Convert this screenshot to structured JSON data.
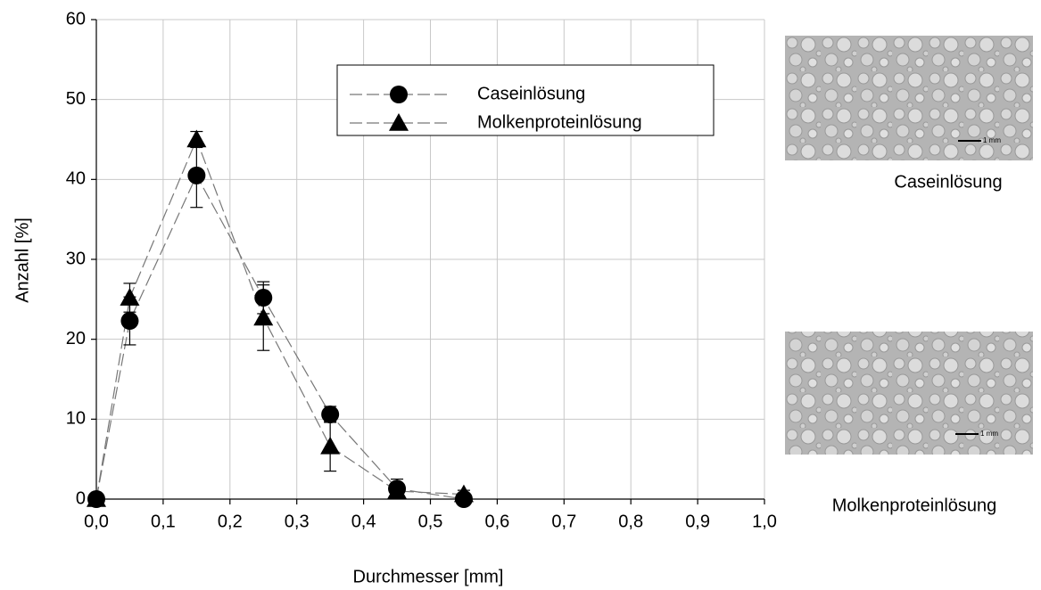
{
  "chart_data": {
    "type": "line",
    "x_label": "Durchmesser [mm]",
    "y_label": "Anzahl [%]",
    "xlim": [
      0,
      1.0
    ],
    "xticks": [
      {
        "value": 0,
        "label": "0,0"
      },
      {
        "value": 0.1,
        "label": "0,1"
      },
      {
        "value": 0.2,
        "label": "0,2"
      },
      {
        "value": 0.3,
        "label": "0,3"
      },
      {
        "value": 0.4,
        "label": "0,4"
      },
      {
        "value": 0.5,
        "label": "0,5"
      },
      {
        "value": 0.6,
        "label": "0,6"
      },
      {
        "value": 0.7,
        "label": "0,7"
      },
      {
        "value": 0.8,
        "label": "0,8"
      },
      {
        "value": 0.9,
        "label": "0,9"
      },
      {
        "value": 1.0,
        "label": "1,0"
      }
    ],
    "ylim": [
      0,
      60
    ],
    "yticks": [
      0,
      10,
      20,
      30,
      40,
      50,
      60
    ],
    "grid": true,
    "legend": "top-right",
    "x": [
      0,
      0.05,
      0.15,
      0.25,
      0.35,
      0.45,
      0.55
    ],
    "series": [
      {
        "name": "Caseinlösung",
        "color": "#000000",
        "marker": "circle",
        "values": [
          0,
          22.3,
          40.5,
          25.2,
          10.6,
          1.3,
          0
        ],
        "errors": [
          0,
          3,
          4,
          2,
          1,
          1.2,
          0
        ]
      },
      {
        "name": "Molkenproteinlösung",
        "color": "#000000",
        "marker": "triangle",
        "values": [
          0,
          25.2,
          45,
          22.7,
          6.6,
          1.0,
          0.6
        ],
        "errors": [
          0,
          1.8,
          1,
          4.1,
          3.1,
          0.5,
          0.5
        ]
      }
    ]
  },
  "images": [
    {
      "caption": "Caseinlösung",
      "scale_label": "1 mm"
    },
    {
      "caption": "Molkenproteinlösung",
      "scale_label": "1 mm"
    }
  ]
}
